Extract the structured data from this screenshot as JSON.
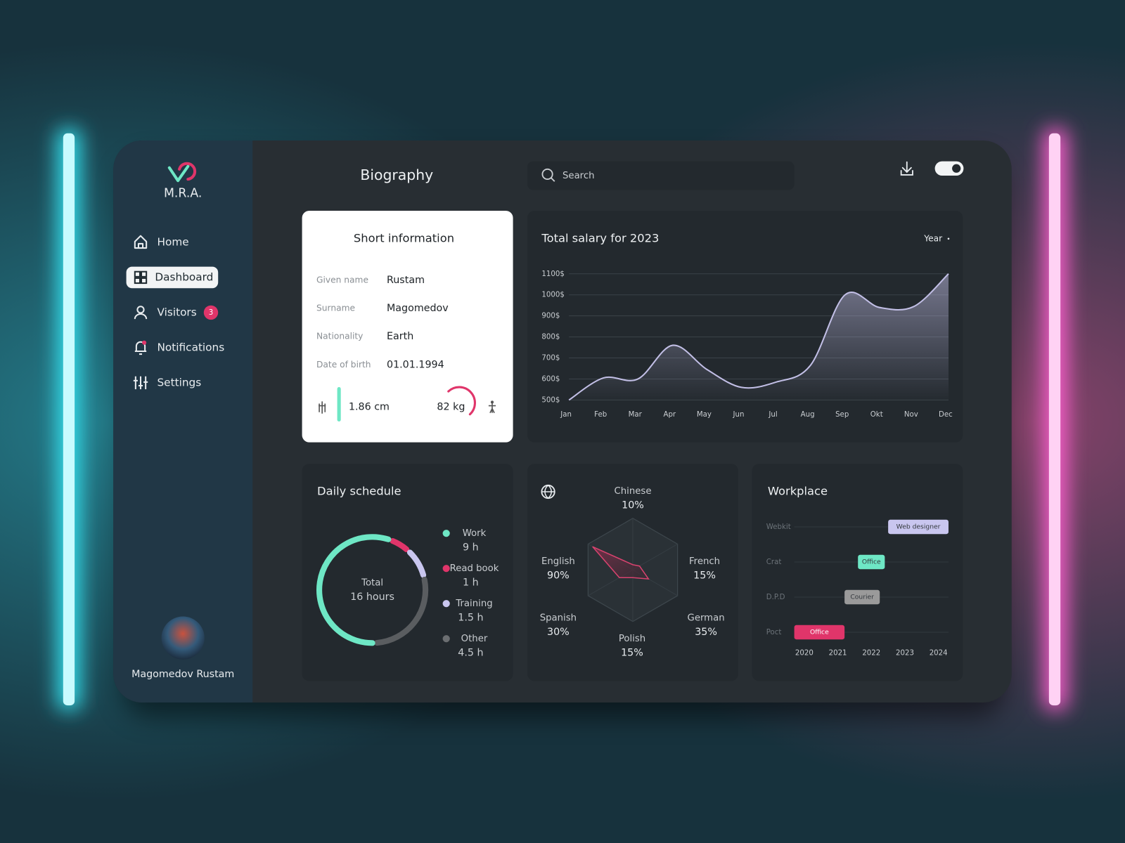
{
  "sidebar": {
    "logo": "M.R.A.",
    "nav": [
      {
        "label": "Home",
        "icon": "home"
      },
      {
        "label": "Dashboard",
        "icon": "grid",
        "active": true
      },
      {
        "label": "Visitors",
        "icon": "user",
        "badge": 3
      },
      {
        "label": "Notifications",
        "icon": "bell"
      },
      {
        "label": "Settings",
        "icon": "sliders"
      }
    ],
    "user": "Magomedov Rustam"
  },
  "header": {
    "title": "Biography",
    "search_placeholder": "Search"
  },
  "short_info": {
    "title": "Short information",
    "rows": [
      [
        "Given name",
        "Rustam"
      ],
      [
        "Surname",
        "Magomedov"
      ],
      [
        "Nationality",
        "Earth"
      ],
      [
        "Date of birth",
        "01.01.1994"
      ]
    ],
    "height": "1.86 cm",
    "weight": "82 kg"
  },
  "salary": {
    "type": "area",
    "title": "Total salary for 2023",
    "period": "Year",
    "categories": [
      "Jan",
      "Feb",
      "Mar",
      "Apr",
      "May",
      "Jun",
      "Jul",
      "Aug",
      "Sep",
      "Okt",
      "Nov",
      "Dec"
    ],
    "values": [
      500,
      605,
      600,
      760,
      645,
      560,
      585,
      665,
      1000,
      940,
      945,
      1100
    ],
    "ylim": [
      500,
      1100
    ],
    "yticks": [
      {
        "value": 500,
        "label": "500$"
      },
      {
        "value": 600,
        "label": "600$"
      },
      {
        "value": 700,
        "label": "700$"
      },
      {
        "value": 800,
        "label": "800$"
      },
      {
        "value": 900,
        "label": "900$"
      },
      {
        "value": 1000,
        "label": "1000$"
      },
      {
        "value": 1100,
        "label": "1100$"
      }
    ],
    "grid": true,
    "color": "#c2bfe6"
  },
  "schedule": {
    "type": "donut",
    "title": "Daily schedule",
    "center_label": "Total",
    "center_value": "16 hours",
    "series": [
      {
        "name": "Work",
        "color": "#6ee7c5",
        "values": [
          9
        ],
        "value_labels": [
          "9 h"
        ]
      },
      {
        "name": "Read book",
        "color": "#e0356a",
        "values": [
          1
        ],
        "value_labels": [
          "1 h"
        ]
      },
      {
        "name": "Training",
        "color": "#c9c6ef",
        "values": [
          1.5
        ],
        "value_labels": [
          "1.5 h"
        ]
      },
      {
        "name": "Other",
        "color": "#5a5d60",
        "values": [
          4.5
        ],
        "value_labels": [
          "4.5 h"
        ]
      }
    ]
  },
  "languages": {
    "type": "radar",
    "categories": [
      "Chinese",
      "French",
      "German",
      "Polish",
      "Spanish",
      "English"
    ],
    "values": [
      10,
      15,
      35,
      15,
      30,
      90
    ],
    "value_labels": [
      "10%",
      "15%",
      "35%",
      "15%",
      "30%",
      "90%"
    ],
    "rlim": [
      0,
      100
    ],
    "color": "#d8436f"
  },
  "workplace": {
    "type": "gantt",
    "title": "Workplace",
    "rows": [
      {
        "name": "Webkit",
        "start": 2022.5,
        "end": 2024.3,
        "label": "Web designer",
        "color": "#c9c6ef"
      },
      {
        "name": "Crat",
        "start": 2021.6,
        "end": 2022.4,
        "label": "Office",
        "color": "#6ee7c5"
      },
      {
        "name": "D.P.D",
        "start": 2021.2,
        "end": 2022.25,
        "label": "Courier",
        "color": "#9a9a9a"
      },
      {
        "name": "Poct",
        "start": 2019.7,
        "end": 2021.2,
        "label": "Office",
        "color": "#e0356a"
      }
    ],
    "xlim": [
      2019.7,
      2024.3
    ],
    "xticks": [
      2020,
      2021,
      2022,
      2023,
      2024
    ]
  }
}
